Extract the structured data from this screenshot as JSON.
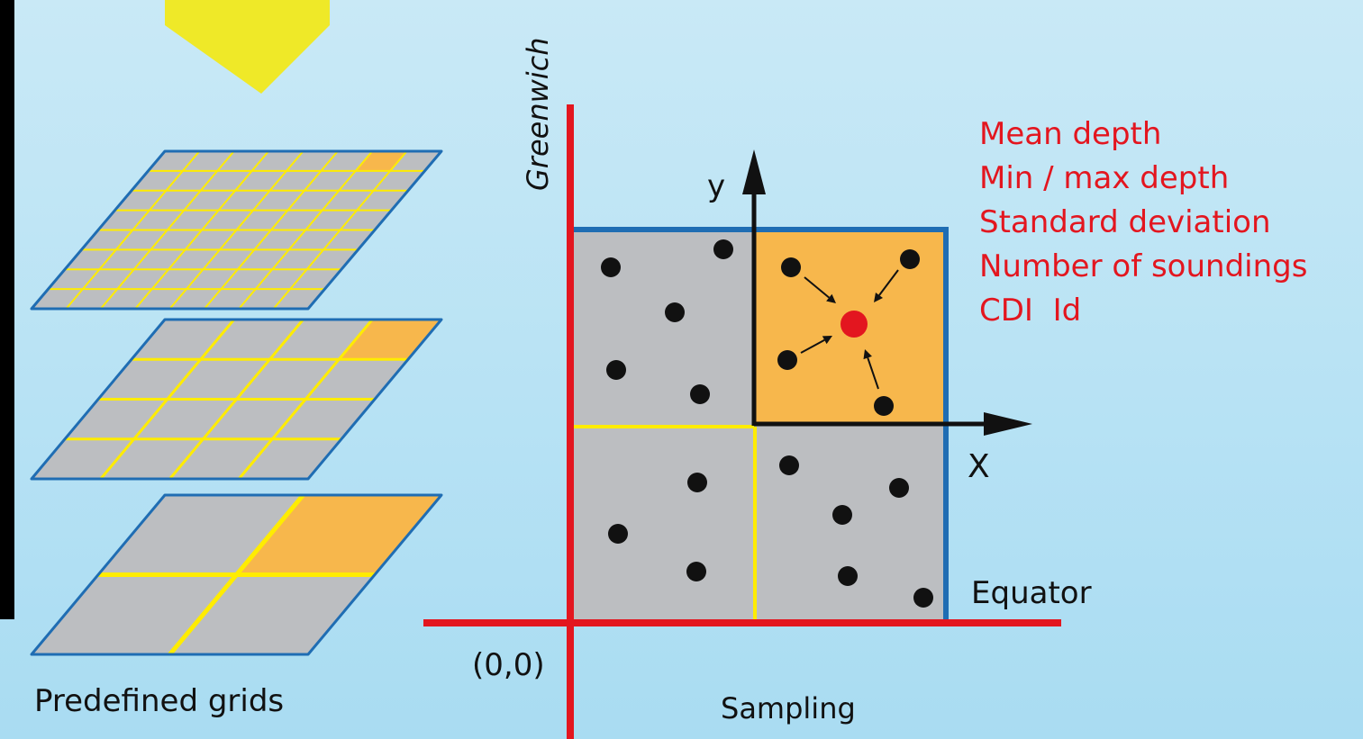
{
  "labels": {
    "predefined_grids": "Predefined grids",
    "sampling": "Sampling",
    "origin": "(0,0)",
    "equator": "Equator",
    "greenwich": "Greenwich",
    "axis_x": "X",
    "axis_y": "y"
  },
  "statistics": [
    "Mean depth",
    "Min / max depth",
    "Standard deviation",
    "Number of soundings",
    "CDI  Id"
  ],
  "colors": {
    "cell_fill": "#bcbec1",
    "highlight_fill": "#f7b74c",
    "grid_line": "#ffec00",
    "frame_blue": "#1f6db3",
    "axis_red": "#e3161f",
    "arrow_yellow": "#f0ea2a",
    "dot": "#111111",
    "centroid": "#e3161f"
  }
}
